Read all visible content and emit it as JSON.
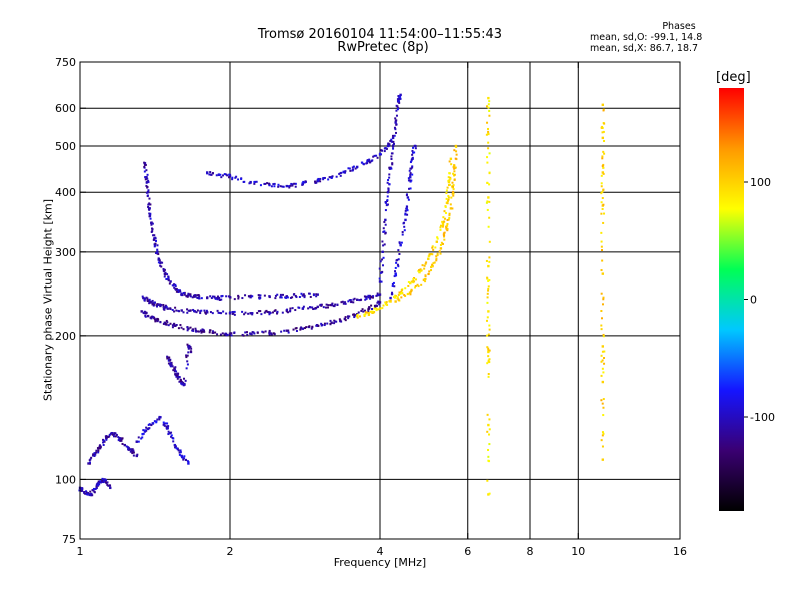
{
  "chart_data": {
    "type": "scatter",
    "title": "Tromsø 20160104 11:54:00–11:55:43",
    "subtitle": "RwPretec (8p)",
    "xlabel": "Frequency [MHz]",
    "ylabel": "Stationary phase Virtual Height [km]",
    "x_scale": "log",
    "y_scale": "log",
    "xlim": [
      1,
      16
    ],
    "ylim": [
      75,
      750
    ],
    "x_ticks": [
      1,
      2,
      4,
      6,
      8,
      10,
      16
    ],
    "x_tick_labels": [
      "1",
      "2",
      "4",
      "6",
      "8",
      "10",
      "16"
    ],
    "x_grid": [
      2,
      4,
      6,
      8,
      10
    ],
    "y_ticks": [
      75,
      100,
      200,
      300,
      400,
      500,
      600,
      750
    ],
    "y_tick_labels": [
      "75",
      "100",
      "200",
      "300",
      "400",
      "500",
      "600",
      "750"
    ],
    "y_grid": [
      100,
      200,
      300,
      400,
      500,
      600
    ],
    "grid": true,
    "colorbar": {
      "unit": "[deg]",
      "ticks": [
        100,
        0,
        -100
      ],
      "tick_labels": [
        "100",
        "0",
        "-100"
      ],
      "range": [
        -180,
        180
      ],
      "colormap": [
        "#000000",
        "#3a0072",
        "#1515ff",
        "#00c8ff",
        "#00ff55",
        "#ffff00",
        "#ff9900",
        "#ff0000"
      ]
    },
    "phases_stats": {
      "title": "Phases",
      "line_o": "mean, sd,O: -99.1, 14.8",
      "line_x": "mean, sd,X:  86.7, 18.7"
    },
    "traces": [
      {
        "name": "",
        "phase": -105,
        "points": [
          [
            1.0,
            96
          ],
          [
            1.02,
            94
          ],
          [
            1.05,
            93
          ],
          [
            1.08,
            96
          ],
          [
            1.1,
            99
          ],
          [
            1.12,
            100
          ],
          [
            1.15,
            96
          ]
        ]
      },
      {
        "name": "",
        "phase": -110,
        "points": [
          [
            1.04,
            108
          ],
          [
            1.07,
            113
          ],
          [
            1.1,
            117
          ],
          [
            1.13,
            122
          ],
          [
            1.16,
            125
          ],
          [
            1.2,
            122
          ],
          [
            1.23,
            118
          ],
          [
            1.27,
            115
          ],
          [
            1.3,
            112
          ]
        ]
      },
      {
        "name": "",
        "phase": -95,
        "points": [
          [
            1.3,
            120
          ],
          [
            1.35,
            126
          ],
          [
            1.4,
            131
          ],
          [
            1.45,
            135
          ],
          [
            1.5,
            128
          ],
          [
            1.55,
            118
          ],
          [
            1.6,
            112
          ],
          [
            1.65,
            108
          ]
        ]
      },
      {
        "name": "",
        "phase": -110,
        "points": [
          [
            1.5,
            180
          ],
          [
            1.52,
            175
          ],
          [
            1.55,
            170
          ],
          [
            1.57,
            165
          ],
          [
            1.6,
            160
          ],
          [
            1.62,
            158
          ],
          [
            1.65,
            190
          ],
          [
            1.67,
            185
          ]
        ]
      },
      {
        "name": "",
        "phase": -105,
        "points": [
          [
            1.35,
            460
          ],
          [
            1.36,
            430
          ],
          [
            1.37,
            400
          ],
          [
            1.38,
            370
          ],
          [
            1.39,
            345
          ],
          [
            1.41,
            320
          ],
          [
            1.43,
            300
          ],
          [
            1.45,
            285
          ],
          [
            1.48,
            270
          ],
          [
            1.52,
            260
          ],
          [
            1.56,
            250
          ],
          [
            1.6,
            245
          ],
          [
            1.65,
            243
          ],
          [
            1.7,
            242
          ],
          [
            1.8,
            240
          ],
          [
            1.9,
            240
          ],
          [
            2.0,
            241
          ],
          [
            2.2,
            241
          ],
          [
            2.4,
            242
          ],
          [
            2.6,
            242
          ],
          [
            2.8,
            243
          ],
          [
            3.0,
            244
          ]
        ]
      },
      {
        "name": "",
        "phase": -110,
        "points": [
          [
            1.34,
            240
          ],
          [
            1.37,
            237
          ],
          [
            1.4,
            234
          ],
          [
            1.45,
            231
          ],
          [
            1.5,
            228
          ],
          [
            1.6,
            226
          ],
          [
            1.7,
            225
          ],
          [
            1.8,
            224
          ],
          [
            2.0,
            223
          ],
          [
            2.2,
            223
          ],
          [
            2.4,
            224
          ],
          [
            2.6,
            226
          ],
          [
            2.8,
            228
          ],
          [
            3.0,
            230
          ],
          [
            3.2,
            232
          ],
          [
            3.4,
            235
          ],
          [
            3.6,
            238
          ],
          [
            3.8,
            241
          ],
          [
            4.0,
            244
          ]
        ]
      },
      {
        "name": "",
        "phase": -115,
        "points": [
          [
            1.33,
            225
          ],
          [
            1.37,
            220
          ],
          [
            1.42,
            216
          ],
          [
            1.48,
            213
          ],
          [
            1.55,
            210
          ],
          [
            1.65,
            207
          ],
          [
            1.75,
            205
          ],
          [
            1.85,
            203
          ],
          [
            2.0,
            202
          ],
          [
            2.2,
            202
          ],
          [
            2.4,
            203
          ],
          [
            2.6,
            205
          ],
          [
            2.8,
            207
          ],
          [
            3.0,
            210
          ],
          [
            3.2,
            213
          ],
          [
            3.4,
            217
          ],
          [
            3.6,
            222
          ],
          [
            3.8,
            228
          ],
          [
            4.0,
            235
          ]
        ]
      },
      {
        "name": "",
        "phase": -100,
        "points": [
          [
            1.8,
            440
          ],
          [
            1.9,
            435
          ],
          [
            2.0,
            432
          ],
          [
            2.2,
            420
          ],
          [
            2.4,
            415
          ],
          [
            2.6,
            412
          ],
          [
            2.8,
            416
          ],
          [
            3.0,
            422
          ],
          [
            3.2,
            430
          ],
          [
            3.4,
            440
          ],
          [
            3.6,
            452
          ],
          [
            3.8,
            465
          ],
          [
            4.0,
            480
          ],
          [
            4.15,
            500
          ],
          [
            4.25,
            520
          ]
        ]
      },
      {
        "name": "",
        "phase": -100,
        "points": [
          [
            4.0,
            260
          ],
          [
            4.05,
            300
          ],
          [
            4.1,
            350
          ],
          [
            4.15,
            400
          ],
          [
            4.2,
            450
          ],
          [
            4.25,
            500
          ],
          [
            4.3,
            560
          ],
          [
            4.35,
            620
          ],
          [
            4.4,
            640
          ]
        ]
      },
      {
        "name": "",
        "phase": -95,
        "points": [
          [
            4.2,
            240
          ],
          [
            4.3,
            270
          ],
          [
            4.4,
            310
          ],
          [
            4.5,
            350
          ],
          [
            4.55,
            390
          ],
          [
            4.6,
            430
          ],
          [
            4.65,
            470
          ],
          [
            4.7,
            500
          ]
        ]
      },
      {
        "name": "",
        "phase": 95,
        "points": [
          [
            3.6,
            220
          ],
          [
            3.8,
            223
          ],
          [
            4.0,
            228
          ],
          [
            4.2,
            236
          ],
          [
            4.4,
            246
          ],
          [
            4.6,
            258
          ],
          [
            4.8,
            272
          ],
          [
            5.0,
            290
          ],
          [
            5.2,
            315
          ],
          [
            5.35,
            345
          ],
          [
            5.45,
            380
          ],
          [
            5.5,
            420
          ],
          [
            5.55,
            470
          ]
        ]
      },
      {
        "name": "",
        "phase": 105,
        "points": [
          [
            4.3,
            236
          ],
          [
            4.6,
            246
          ],
          [
            4.9,
            262
          ],
          [
            5.1,
            280
          ],
          [
            5.3,
            305
          ],
          [
            5.45,
            335
          ],
          [
            5.55,
            370
          ],
          [
            5.6,
            410
          ],
          [
            5.65,
            450
          ],
          [
            5.68,
            500
          ]
        ]
      },
      {
        "name": "",
        "phase": 90,
        "points": [
          [
            6.6,
            630
          ],
          [
            6.6,
            530
          ],
          [
            6.6,
            390
          ],
          [
            6.6,
            280
          ],
          [
            6.6,
            225
          ],
          [
            6.6,
            185
          ],
          [
            6.6,
            130
          ],
          [
            6.6,
            93
          ]
        ]
      },
      {
        "name": "",
        "phase": 100,
        "points": [
          [
            11.2,
            610
          ],
          [
            11.2,
            520
          ],
          [
            11.2,
            440
          ],
          [
            11.2,
            375
          ],
          [
            11.2,
            270
          ],
          [
            11.2,
            190
          ],
          [
            11.2,
            160
          ],
          [
            11.2,
            110
          ]
        ]
      }
    ]
  }
}
